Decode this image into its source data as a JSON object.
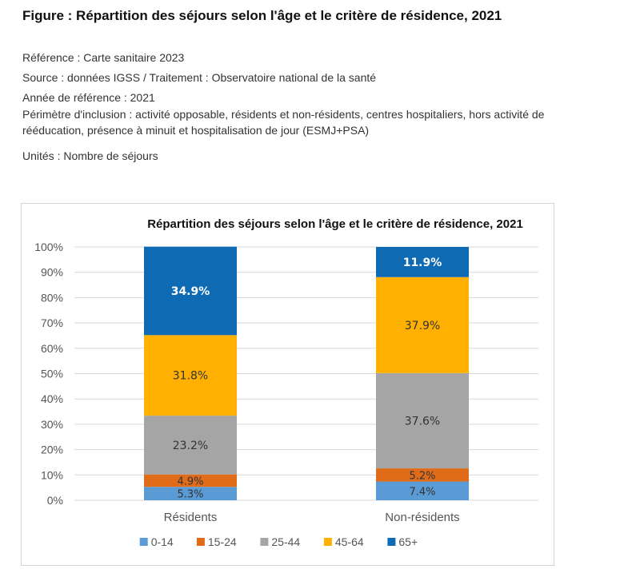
{
  "figure": {
    "title": "Figure : Répartition des séjours selon l'âge et le critère de résidence, 2021",
    "reference": "Référence : Carte sanitaire 2023",
    "source": "Source : données IGSS / Traitement : Observatoire national de la santé",
    "year": "Année de référence : 2021",
    "scope_line1": "Périmètre d'inclusion : activité opposable, résidents et non-résidents, centres hospitaliers, hors activité de",
    "scope_line2": "rééducation, présence à minuit et hospitalisation de jour (ESMJ+PSA)",
    "units": "Unités : Nombre de séjours"
  },
  "chart_data": {
    "type": "bar",
    "stacked": true,
    "percent": true,
    "title": "Répartition des séjours selon l'âge et le critère de résidence, 2021",
    "categories": [
      "Résidents",
      "Non-résidents"
    ],
    "series": [
      {
        "name": "0-14",
        "color": "#5b9bd5",
        "values": [
          5.3,
          7.4
        ],
        "labels": [
          "5.3%",
          "7.4%"
        ],
        "label_color": "#333333"
      },
      {
        "name": "15-24",
        "color": "#e06c1a",
        "values": [
          4.9,
          5.2
        ],
        "labels": [
          "4.9%",
          "5.2%"
        ],
        "label_color": "#333333"
      },
      {
        "name": "25-44",
        "color": "#a5a5a5",
        "values": [
          23.2,
          37.6
        ],
        "labels": [
          "23.2%",
          "37.6%"
        ],
        "label_color": "#333333"
      },
      {
        "name": "45-64",
        "color": "#ffb000",
        "values": [
          31.8,
          37.9
        ],
        "labels": [
          "31.8%",
          "37.9%"
        ],
        "label_color": "#333333"
      },
      {
        "name": "65+",
        "color": "#0f6ab4",
        "values": [
          34.9,
          11.9
        ],
        "labels": [
          "34.9%",
          "11.9%"
        ],
        "label_color": "#ffffff"
      }
    ],
    "ylim": [
      0,
      100
    ],
    "yticks": [
      "0%",
      "10%",
      "20%",
      "30%",
      "40%",
      "50%",
      "60%",
      "70%",
      "80%",
      "90%",
      "100%"
    ],
    "grid": true,
    "legend": "bottom"
  }
}
